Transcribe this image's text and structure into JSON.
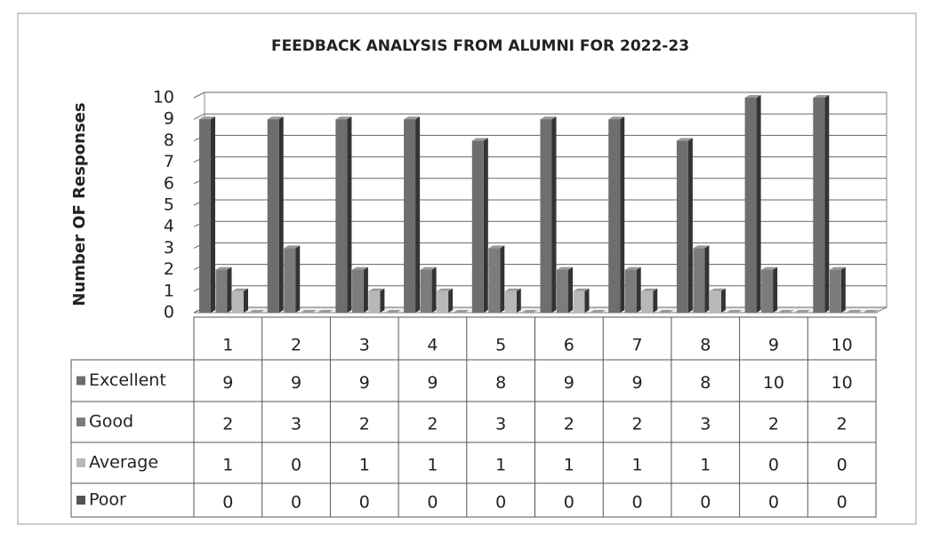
{
  "chart_data": {
    "type": "bar",
    "title": "FEEDBACK ANALYSIS FROM ALUMNI  FOR  2022-23",
    "y_label": "Number OF Responses",
    "categories": [
      "1",
      "2",
      "3",
      "4",
      "5",
      "6",
      "7",
      "8",
      "9",
      "10"
    ],
    "series": [
      {
        "name": "Excellent",
        "color": "#6e6e6e",
        "values": [
          9,
          9,
          9,
          9,
          8,
          9,
          9,
          8,
          10,
          10
        ]
      },
      {
        "name": " Good",
        "color": "#7c7c7c",
        "values": [
          2,
          3,
          2,
          2,
          3,
          2,
          2,
          3,
          2,
          2
        ]
      },
      {
        "name": "Average",
        "color": "#b8b8b8",
        "values": [
          1,
          0,
          1,
          1,
          1,
          1,
          1,
          1,
          0,
          0
        ]
      },
      {
        "name": "Poor",
        "color": "#555555",
        "values": [
          0,
          0,
          0,
          0,
          0,
          0,
          0,
          0,
          0,
          0
        ]
      }
    ],
    "ylim": [
      0,
      10
    ],
    "yticks": [
      0,
      1,
      2,
      3,
      4,
      5,
      6,
      7,
      8,
      9,
      10
    ],
    "grid": true
  }
}
